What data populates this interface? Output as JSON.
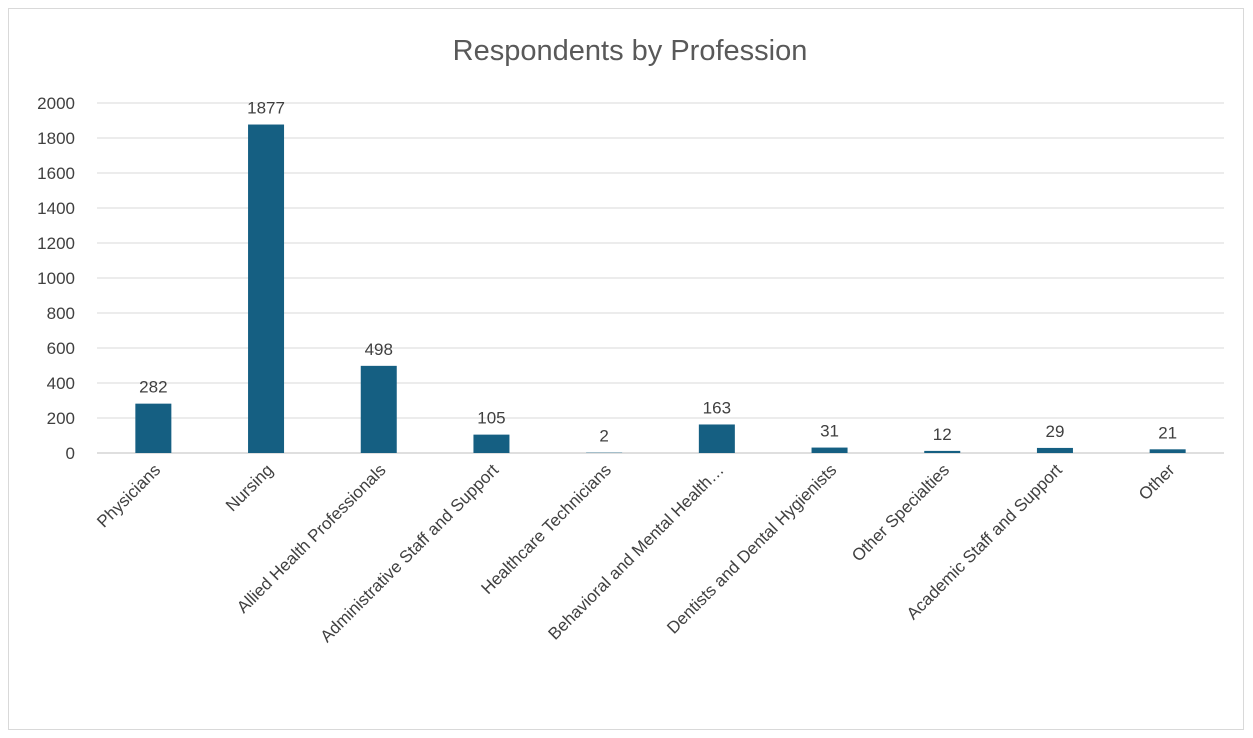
{
  "chart_data": {
    "type": "bar",
    "title": "Respondents by Profession",
    "xlabel": "",
    "ylabel": "",
    "categories": [
      "Physicians",
      "Nursing",
      "Allied Health Professionals",
      "Administrative Staff and Support",
      "Healthcare Technicians",
      "Behavioral and Mental Health…",
      "Dentists and Dental Hygienists",
      "Other Specialties",
      "Academic Staff and Support",
      "Other"
    ],
    "values": [
      282,
      1877,
      498,
      105,
      2,
      163,
      31,
      12,
      29,
      21
    ],
    "ylim": [
      0,
      2000
    ],
    "yticks": [
      0,
      200,
      400,
      600,
      800,
      1000,
      1200,
      1400,
      1600,
      1800,
      2000
    ],
    "grid": true,
    "legend": "none",
    "bar_color": "#155F82",
    "data_labels": true
  }
}
